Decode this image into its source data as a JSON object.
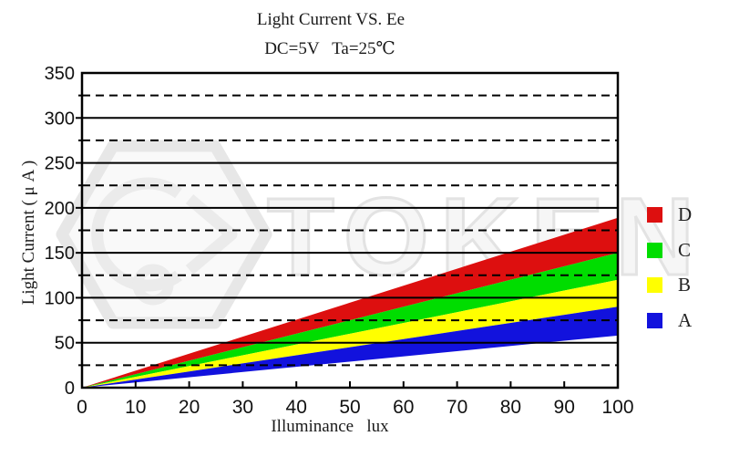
{
  "header": {
    "title": "Light Current VS. Ee",
    "subtitle": "DC=5V   Ta=25℃"
  },
  "watermark": {
    "text": "TOKEN"
  },
  "chart_data": {
    "type": "area",
    "title": "Light Current VS. Ee",
    "subtitle": "DC=5V   Ta=25℃",
    "xlabel": "Illuminance   lux",
    "ylabel": "Light Current ( μ A )",
    "xlim": [
      0,
      100
    ],
    "ylim": [
      0,
      350
    ],
    "x_ticks": [
      0,
      10,
      20,
      30,
      40,
      50,
      60,
      70,
      80,
      90,
      100
    ],
    "y_ticks": [
      0,
      50,
      100,
      150,
      200,
      250,
      300,
      350
    ],
    "y_minor_step": 25,
    "grid": {
      "solid_every": 50,
      "dashed_every": 25,
      "style": "solid majors, dashed minors"
    },
    "legend_position": "right-outside",
    "series_note": "Four linear rank bands radiating from origin (0,0); y ranges given at x=100 lux",
    "series": [
      {
        "name": "D",
        "color": "#dd0f0f",
        "x": [
          0,
          100
        ],
        "y_top": [
          0,
          189
        ],
        "y_bottom": [
          0,
          150
        ]
      },
      {
        "name": "C",
        "color": "#00dd00",
        "x": [
          0,
          100
        ],
        "y_top": [
          0,
          150
        ],
        "y_bottom": [
          0,
          120
        ]
      },
      {
        "name": "B",
        "color": "#ffff00",
        "x": [
          0,
          100
        ],
        "y_top": [
          0,
          120
        ],
        "y_bottom": [
          0,
          90
        ]
      },
      {
        "name": "A",
        "color": "#1212dd",
        "x": [
          0,
          100
        ],
        "y_top": [
          0,
          90
        ],
        "y_bottom": [
          0,
          58
        ]
      }
    ]
  },
  "legend": {
    "items": [
      {
        "label": "D",
        "color": "#dd0f0f"
      },
      {
        "label": "C",
        "color": "#00dd00"
      },
      {
        "label": "B",
        "color": "#ffff00"
      },
      {
        "label": "A",
        "color": "#1212dd"
      }
    ]
  }
}
